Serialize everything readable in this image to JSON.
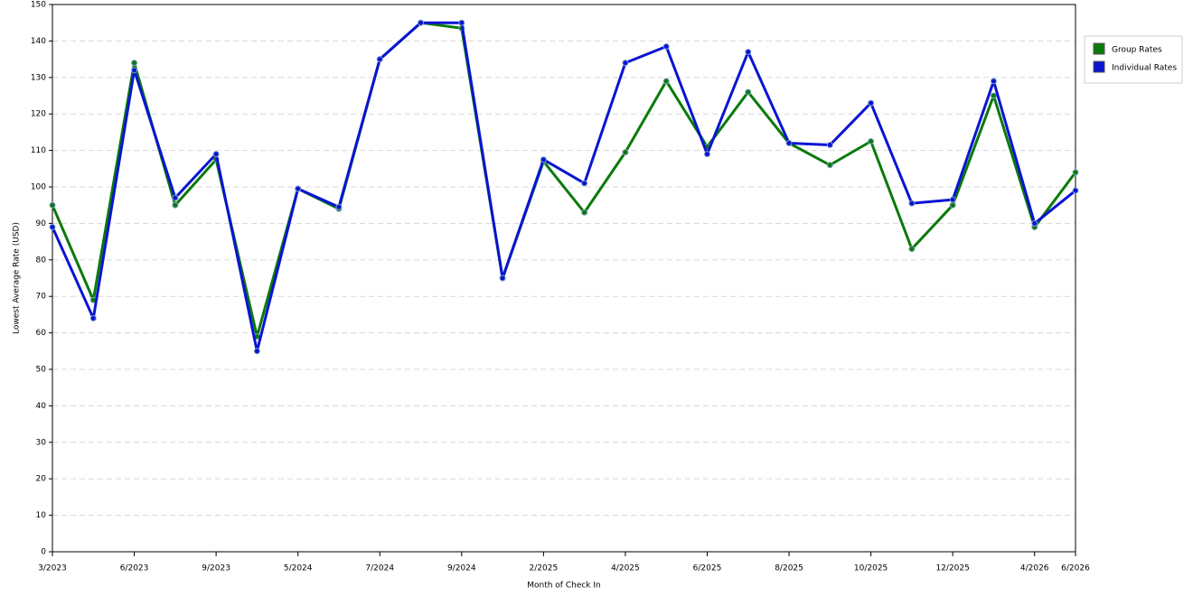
{
  "chart_data": {
    "type": "line",
    "x_label": "Month of Check In",
    "y_label": "Lowest Average Rate (USD)",
    "categories": [
      "3/2023",
      null,
      "6/2023",
      null,
      "9/2023",
      null,
      "5/2024",
      null,
      "7/2024",
      null,
      "9/2024",
      null,
      "2/2025",
      null,
      "4/2025",
      null,
      "6/2025",
      null,
      "8/2025",
      null,
      "10/2025",
      null,
      "12/2025",
      null,
      "4/2026",
      "6/2026"
    ],
    "series": [
      {
        "name": "Group Rates",
        "color": "#0a7a0a",
        "values": [
          95,
          69,
          134,
          95,
          107.5,
          59,
          99.5,
          94,
          135,
          145,
          143.5,
          75,
          107,
          93,
          109.5,
          129,
          111,
          126,
          112,
          106,
          112.5,
          83,
          95,
          125,
          89,
          104
        ]
      },
      {
        "name": "Individual Rates",
        "color": "#0a14d2",
        "values": [
          89,
          64,
          132,
          97,
          109,
          55,
          99.5,
          94.5,
          135,
          145,
          145,
          75,
          107.5,
          101,
          134,
          138.5,
          109,
          137,
          112,
          111.5,
          123,
          95.5,
          96.5,
          129,
          90,
          99
        ]
      }
    ],
    "ylim": [
      0,
      150
    ],
    "yticks": [
      0,
      10,
      20,
      30,
      40,
      50,
      60,
      70,
      80,
      90,
      100,
      110,
      120,
      130,
      140,
      150
    ],
    "grid": true,
    "legend": "right"
  }
}
